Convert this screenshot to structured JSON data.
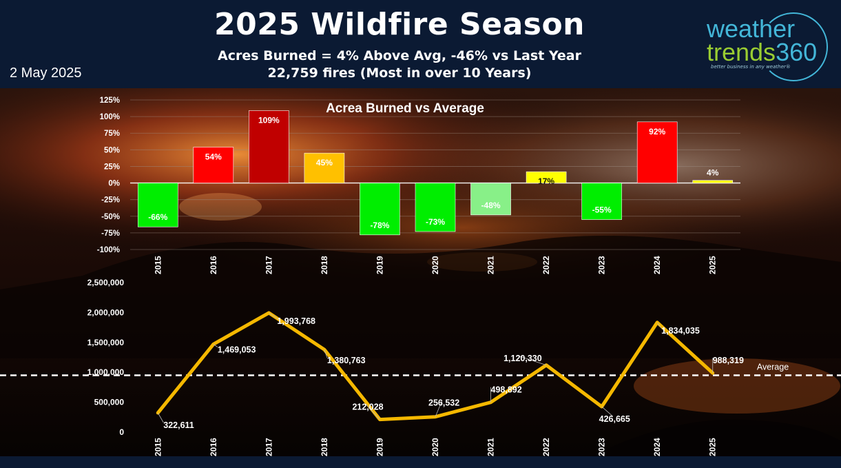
{
  "header": {
    "title": "2025 Wildfire Season",
    "subtitle_line1": "Acres Burned = 4% Above Avg, -46% vs Last Year",
    "subtitle_line2": "22,759 fires (Most in over 10 Years)",
    "date": "2 May 2025"
  },
  "logo": {
    "word1": "weather",
    "word2": "trends",
    "word3": "360",
    "tagline": "better business in any weather®"
  },
  "colors": {
    "header_bg": "#0b1a33",
    "line": "#f5b800",
    "green": "#00ee00",
    "light_green": "#88f088",
    "yellow": "#ffff00",
    "amber": "#ffc000",
    "red": "#ff0000",
    "dark_red": "#c00000"
  },
  "chart_data": [
    {
      "type": "bar",
      "title": "Acrea Burned vs Average",
      "categories": [
        "2015",
        "2016",
        "2017",
        "2018",
        "2019",
        "2020",
        "2021",
        "2022",
        "2023",
        "2024",
        "2025"
      ],
      "values": [
        -66,
        54,
        109,
        45,
        -78,
        -73,
        -48,
        17,
        -55,
        92,
        4
      ],
      "value_labels": [
        "-66%",
        "54%",
        "109%",
        "45%",
        "-78%",
        "-73%",
        "-48%",
        "17%",
        "-55%",
        "92%",
        "4%"
      ],
      "bar_colors": [
        "#00ee00",
        "#ff0000",
        "#c00000",
        "#ffc000",
        "#00ee00",
        "#00ee00",
        "#88f088",
        "#ffff00",
        "#00ee00",
        "#ff0000",
        "#ffff00"
      ],
      "ylim": [
        -100,
        125
      ],
      "yticks": [
        "125%",
        "100%",
        "75%",
        "50%",
        "25%",
        "0%",
        "-25%",
        "-50%",
        "-75%",
        "-100%"
      ],
      "ytick_values": [
        125,
        100,
        75,
        50,
        25,
        0,
        -25,
        -50,
        -75,
        -100
      ],
      "grid": true
    },
    {
      "type": "line",
      "categories": [
        "2015",
        "2016",
        "2017",
        "2018",
        "2019",
        "2020",
        "2021",
        "2022",
        "2023",
        "2024",
        "2025"
      ],
      "values": [
        322611,
        1469053,
        1993768,
        1380763,
        212028,
        256532,
        498892,
        1120330,
        426665,
        1834035,
        988319
      ],
      "value_labels": [
        "322,611",
        "1,469,053",
        "1,993,768",
        "1,380,763",
        "212,028",
        "256,532",
        "498,892",
        "1,120,330",
        "426,665",
        "1,834,035",
        "988,319"
      ],
      "ylim": [
        0,
        2500000
      ],
      "yticks": [
        "2,500,000",
        "2,000,000",
        "1,500,000",
        "1,000,000",
        "500,000",
        "0"
      ],
      "ytick_values": [
        2500000,
        2000000,
        1500000,
        1000000,
        500000,
        0
      ],
      "average_value": 950000,
      "average_label": "Average",
      "grid": false
    }
  ]
}
